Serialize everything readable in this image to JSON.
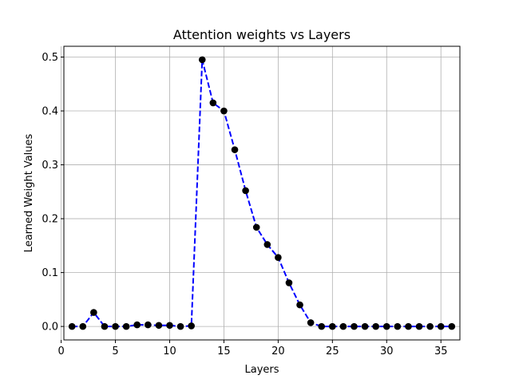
{
  "chart_data": {
    "type": "line",
    "title": "Attention weights vs Layers",
    "xlabel": "Layers",
    "ylabel": "Learned Weight Values",
    "xlim": [
      0.25,
      36.75
    ],
    "ylim": [
      -0.025,
      0.52
    ],
    "xticks": [
      0,
      5,
      10,
      15,
      20,
      25,
      30,
      35
    ],
    "yticks": [
      0.0,
      0.1,
      0.2,
      0.3,
      0.4,
      0.5
    ],
    "ytick_labels": [
      "0.0",
      "0.1",
      "0.2",
      "0.3",
      "0.4",
      "0.5"
    ],
    "grid": true,
    "series": [
      {
        "x": [
          1,
          2,
          3,
          4,
          5,
          6,
          7,
          8,
          9,
          10,
          11,
          12,
          13,
          14,
          15,
          16,
          17,
          18,
          19,
          20,
          21,
          22,
          23,
          24,
          25,
          26,
          27,
          28,
          29,
          30,
          31,
          32,
          33,
          34,
          35,
          36
        ],
        "values": [
          0.0,
          0.0,
          0.026,
          0.0,
          0.0,
          0.0,
          0.003,
          0.003,
          0.002,
          0.002,
          0.0,
          0.001,
          0.495,
          0.415,
          0.4,
          0.328,
          0.252,
          0.184,
          0.152,
          0.128,
          0.081,
          0.04,
          0.007,
          0.0,
          0.0,
          0.0,
          0.0,
          0.0,
          0.0,
          0.0,
          0.0,
          0.0,
          0.0,
          0.0,
          0.0,
          0.0
        ],
        "line_color": "#0000ff",
        "line_style": "dashed",
        "marker_color": "#000000"
      }
    ]
  }
}
